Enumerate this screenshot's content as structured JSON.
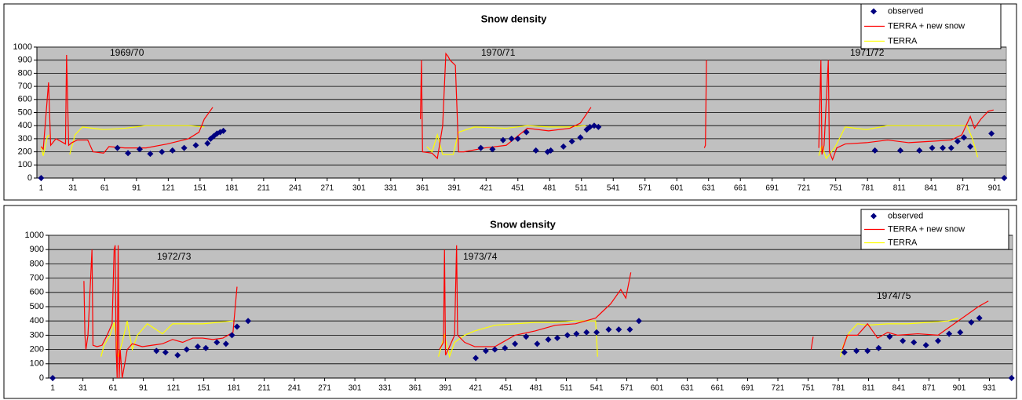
{
  "chart_data": [
    {
      "type": "line",
      "title": "Snow density",
      "annotations": [
        "1969/70",
        "1970/71",
        "1971/72"
      ],
      "xlim": [
        -3,
        912
      ],
      "ylim": [
        0,
        1000
      ],
      "xticks": [
        1,
        31,
        61,
        91,
        121,
        151,
        181,
        211,
        241,
        271,
        301,
        331,
        361,
        391,
        421,
        451,
        481,
        511,
        541,
        571,
        601,
        631,
        661,
        691,
        721,
        751,
        781,
        811,
        841,
        871,
        901
      ],
      "yticks": [
        0,
        100,
        200,
        300,
        400,
        500,
        600,
        700,
        800,
        900,
        1000
      ],
      "grid": true,
      "legend": "top-right",
      "background": "#c0c0c0",
      "series": [
        {
          "name": "observed",
          "color": "#000080",
          "marker": "diamond",
          "x": [
            1,
            73,
            83,
            94,
            104,
            115,
            125,
            136,
            147,
            158,
            161,
            164,
            167,
            170,
            173,
            416,
            427,
            437,
            445,
            451,
            459,
            468,
            479,
            482,
            494,
            502,
            510,
            516,
            519,
            523,
            527,
            788,
            812,
            830,
            842,
            852,
            860,
            866,
            872,
            878,
            898,
            910
          ],
          "values": [
            0,
            230,
            190,
            220,
            185,
            200,
            210,
            230,
            250,
            265,
            300,
            320,
            340,
            350,
            360,
            230,
            220,
            290,
            300,
            300,
            350,
            210,
            200,
            210,
            240,
            280,
            310,
            370,
            390,
            400,
            390,
            210,
            210,
            210,
            230,
            230,
            230,
            280,
            310,
            240,
            340,
            0
          ]
        },
        {
          "name": "TERRA + new snow",
          "color": "#ff0000",
          "x": [
            1,
            3,
            8,
            10,
            15,
            24,
            25,
            27,
            30,
            35,
            45,
            50,
            60,
            65,
            80,
            100,
            120,
            140,
            150,
            155,
            163,
            250,
            359,
            360,
            361,
            370,
            375,
            380,
            383,
            385,
            387,
            392,
            395,
            400,
            420,
            440,
            460,
            480,
            500,
            510,
            520,
            600,
            627,
            628,
            629,
            700,
            735,
            737,
            738,
            740,
            744,
            745,
            748,
            752,
            760,
            780,
            800,
            820,
            840,
            860,
            870,
            878,
            882,
            888,
            895,
            900
          ],
          "values": [
            240,
            220,
            730,
            250,
            300,
            260,
            940,
            250,
            270,
            290,
            290,
            200,
            190,
            240,
            230,
            230,
            260,
            300,
            350,
            450,
            540,
            null,
            450,
            900,
            200,
            190,
            150,
            400,
            950,
            930,
            900,
            860,
            200,
            200,
            230,
            250,
            380,
            360,
            380,
            420,
            540,
            null,
            230,
            250,
            900,
            null,
            230,
            900,
            180,
            250,
            900,
            200,
            140,
            230,
            260,
            270,
            290,
            270,
            280,
            290,
            330,
            470,
            380,
            450,
            510,
            520
          ]
        },
        {
          "name": "TERRA",
          "color": "#ffff00",
          "x": [
            1,
            3,
            7,
            10,
            20,
            28,
            33,
            40,
            60,
            80,
            100,
            120,
            140,
            155,
            250,
            365,
            370,
            375,
            380,
            390,
            395,
            410,
            440,
            460,
            480,
            500,
            515,
            600,
            735,
            738,
            742,
            750,
            760,
            780,
            800,
            830,
            860,
            875,
            880,
            885
          ],
          "values": [
            240,
            170,
            320,
            330,
            null,
            180,
            330,
            390,
            370,
            380,
            400,
            400,
            400,
            390,
            null,
            240,
            200,
            330,
            180,
            180,
            350,
            390,
            380,
            400,
            390,
            390,
            400,
            null,
            170,
            250,
            150,
            230,
            390,
            370,
            400,
            400,
            400,
            400,
            300,
            160
          ]
        }
      ]
    },
    {
      "type": "line",
      "title": "Snow density",
      "annotations": [
        "1972/73",
        "1973/74",
        "1974/75"
      ],
      "xlim": [
        -3,
        954
      ],
      "ylim": [
        0,
        1000
      ],
      "xticks": [
        1,
        31,
        61,
        91,
        121,
        151,
        181,
        211,
        241,
        271,
        301,
        331,
        361,
        391,
        421,
        451,
        481,
        511,
        541,
        571,
        601,
        631,
        661,
        691,
        721,
        751,
        781,
        811,
        841,
        871,
        901,
        931
      ],
      "yticks": [
        0,
        100,
        200,
        300,
        400,
        500,
        600,
        700,
        800,
        900,
        1000
      ],
      "grid": true,
      "legend": "top-right",
      "background": "#c0c0c0",
      "series": [
        {
          "name": "observed",
          "color": "#000080",
          "marker": "diamond",
          "x": [
            1,
            104,
            113,
            125,
            134,
            145,
            153,
            164,
            173,
            179,
            184,
            195,
            421,
            431,
            440,
            450,
            460,
            471,
            482,
            493,
            502,
            512,
            521,
            531,
            541,
            553,
            563,
            574,
            583,
            787,
            799,
            810,
            821,
            832,
            845,
            856,
            868,
            880,
            891,
            902,
            913,
            921,
            953
          ],
          "values": [
            0,
            190,
            180,
            160,
            200,
            220,
            210,
            250,
            240,
            300,
            360,
            400,
            140,
            190,
            200,
            210,
            240,
            290,
            240,
            270,
            280,
            300,
            310,
            320,
            320,
            340,
            340,
            340,
            400,
            180,
            190,
            190,
            210,
            290,
            260,
            250,
            230,
            260,
            310,
            320,
            390,
            420,
            0
          ]
        },
        {
          "name": "TERRA + new snow",
          "color": "#ff0000",
          "x": [
            32,
            33,
            34,
            36,
            40,
            41,
            45,
            50,
            55,
            60,
            62,
            63,
            64,
            65,
            66,
            67,
            68,
            70,
            75,
            80,
            90,
            100,
            110,
            120,
            130,
            140,
            150,
            160,
            170,
            180,
            184,
            300,
            385,
            389,
            390,
            391,
            395,
            400,
            402,
            403,
            410,
            420,
            440,
            460,
            480,
            500,
            520,
            540,
            555,
            565,
            570,
            575,
            700,
            754,
            756,
            770,
            785,
            790,
            800,
            810,
            820,
            830,
            840,
            860,
            880,
            890,
            900,
            910,
            920,
            930
          ],
          "values": [
            680,
            300,
            200,
            300,
            900,
            230,
            220,
            230,
            300,
            380,
            900,
            930,
            200,
            0,
            930,
            0,
            200,
            0,
            200,
            240,
            220,
            230,
            240,
            270,
            250,
            280,
            280,
            270,
            280,
            320,
            640,
            null,
            200,
            250,
            900,
            160,
            220,
            300,
            930,
            300,
            250,
            220,
            220,
            300,
            330,
            370,
            380,
            420,
            520,
            620,
            560,
            740,
            null,
            200,
            290,
            null,
            200,
            300,
            300,
            380,
            280,
            320,
            300,
            310,
            300,
            350,
            400,
            450,
            500,
            540
          ]
        },
        {
          "name": "TERRA",
          "color": "#ffff00",
          "x": [
            49,
            52,
            58,
            62,
            66,
            70,
            75,
            80,
            85,
            95,
            110,
            120,
            135,
            150,
            165,
            180,
            300,
            384,
            390,
            395,
            400,
            410,
            420,
            440,
            460,
            480,
            500,
            520,
            540,
            542,
            700,
            783,
            786,
            792,
            800,
            810,
            830,
            850,
            870,
            890,
            900
          ],
          "values": [
            150,
            230,
            300,
            390,
            150,
            250,
            400,
            200,
            300,
            380,
            310,
            380,
            380,
            380,
            390,
            400,
            null,
            150,
            300,
            150,
            250,
            300,
            330,
            370,
            380,
            390,
            390,
            400,
            400,
            150,
            null,
            150,
            230,
            320,
            380,
            370,
            380,
            380,
            390,
            400,
            420
          ]
        }
      ]
    }
  ]
}
